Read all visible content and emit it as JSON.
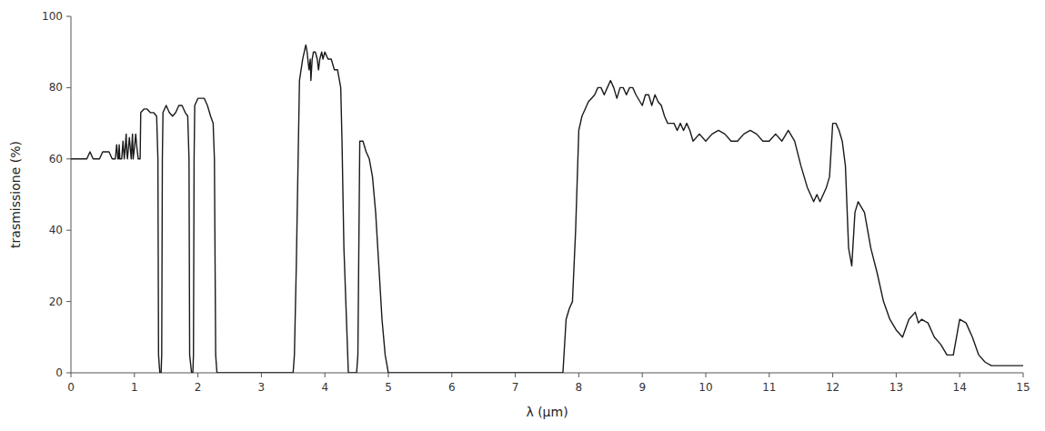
{
  "chart_data": {
    "type": "line",
    "xlabel": "λ (μm)",
    "ylabel": "trasmissione (%)",
    "color": "#1a1a1a",
    "xlim": [
      0,
      15
    ],
    "ylim": [
      0,
      100
    ],
    "xticks": [
      0,
      1,
      2,
      3,
      4,
      5,
      6,
      7,
      8,
      9,
      10,
      11,
      12,
      13,
      14,
      15
    ],
    "yticks": [
      0,
      20,
      40,
      60,
      80,
      100
    ],
    "x": [
      0.0,
      0.1,
      0.2,
      0.25,
      0.3,
      0.35,
      0.4,
      0.45,
      0.5,
      0.55,
      0.6,
      0.65,
      0.7,
      0.72,
      0.74,
      0.75,
      0.76,
      0.77,
      0.8,
      0.82,
      0.84,
      0.85,
      0.87,
      0.88,
      0.89,
      0.9,
      0.92,
      0.94,
      0.95,
      0.96,
      0.97,
      0.98,
      1.0,
      1.02,
      1.04,
      1.06,
      1.09,
      1.1,
      1.15,
      1.2,
      1.25,
      1.3,
      1.35,
      1.37,
      1.38,
      1.4,
      1.42,
      1.43,
      1.44,
      1.45,
      1.5,
      1.55,
      1.6,
      1.65,
      1.7,
      1.75,
      1.8,
      1.84,
      1.86,
      1.87,
      1.9,
      1.92,
      1.93,
      1.94,
      1.95,
      2.0,
      2.05,
      2.1,
      2.15,
      2.2,
      2.24,
      2.26,
      2.28,
      2.3,
      2.35,
      2.4,
      2.45,
      2.5,
      2.55,
      2.6,
      2.7,
      2.75,
      2.8,
      2.85,
      2.9,
      2.95,
      3.0,
      3.05,
      3.1,
      3.15,
      3.2,
      3.3,
      3.4,
      3.5,
      3.52,
      3.55,
      3.6,
      3.65,
      3.7,
      3.72,
      3.75,
      3.77,
      3.78,
      3.8,
      3.82,
      3.85,
      3.88,
      3.9,
      3.92,
      3.95,
      3.97,
      4.0,
      4.05,
      4.1,
      4.15,
      4.2,
      4.25,
      4.27,
      4.3,
      4.35,
      4.37,
      4.4,
      4.5,
      4.52,
      4.55,
      4.6,
      4.65,
      4.7,
      4.75,
      4.8,
      4.85,
      4.9,
      4.95,
      5.0,
      5.1,
      5.2,
      5.3,
      5.4,
      5.5,
      5.6,
      5.7,
      5.8,
      5.9,
      6.0,
      6.1,
      6.2,
      6.3,
      6.4,
      6.5,
      6.6,
      6.7,
      6.8,
      6.9,
      7.0,
      7.1,
      7.2,
      7.3,
      7.4,
      7.5,
      7.6,
      7.7,
      7.75,
      7.8,
      7.85,
      7.9,
      7.95,
      8.0,
      8.05,
      8.1,
      8.15,
      8.2,
      8.25,
      8.3,
      8.35,
      8.4,
      8.45,
      8.5,
      8.55,
      8.6,
      8.65,
      8.7,
      8.75,
      8.8,
      8.85,
      8.9,
      9.0,
      9.05,
      9.1,
      9.15,
      9.2,
      9.25,
      9.3,
      9.35,
      9.4,
      9.45,
      9.5,
      9.55,
      9.6,
      9.65,
      9.7,
      9.75,
      9.8,
      9.9,
      10.0,
      10.1,
      10.2,
      10.3,
      10.4,
      10.5,
      10.6,
      10.7,
      10.8,
      10.9,
      11.0,
      11.1,
      11.2,
      11.3,
      11.4,
      11.5,
      11.6,
      11.7,
      11.75,
      11.8,
      11.9,
      11.95,
      12.0,
      12.05,
      12.1,
      12.15,
      12.2,
      12.25,
      12.3,
      12.35,
      12.4,
      12.5,
      12.55,
      12.6,
      12.7,
      12.8,
      12.9,
      13.0,
      13.1,
      13.2,
      13.3,
      13.35,
      13.4,
      13.5,
      13.6,
      13.7,
      13.8,
      13.9,
      14.0,
      14.1,
      14.2,
      14.3,
      14.4,
      14.5,
      15.0
    ],
    "values": [
      60,
      60,
      60,
      60,
      62,
      60,
      60,
      60,
      62,
      62,
      62,
      60,
      60,
      64,
      60,
      60,
      64,
      60,
      60,
      65,
      60,
      62,
      67,
      62,
      60,
      62,
      66,
      62,
      60,
      64,
      67,
      60,
      63,
      67,
      63,
      60,
      60,
      73,
      74,
      74,
      73,
      73,
      72,
      60,
      5,
      0,
      0,
      5,
      60,
      73,
      75,
      73,
      72,
      73,
      75,
      75,
      73,
      72,
      60,
      5,
      0,
      0,
      5,
      60,
      75,
      77,
      77,
      77,
      75,
      72,
      70,
      60,
      5,
      0,
      0,
      0,
      0,
      0,
      0,
      0,
      0,
      0,
      0,
      0,
      0,
      0,
      0,
      0,
      0,
      0,
      0,
      0,
      0,
      0,
      5,
      30,
      82,
      88,
      92,
      90,
      85,
      88,
      82,
      88,
      90,
      90,
      88,
      85,
      88,
      90,
      88,
      90,
      88,
      88,
      85,
      85,
      80,
      65,
      35,
      10,
      0,
      0,
      0,
      5,
      65,
      65,
      62,
      60,
      55,
      45,
      30,
      15,
      5,
      0,
      0,
      0,
      0,
      0,
      0,
      0,
      0,
      0,
      0,
      0,
      0,
      0,
      0,
      0,
      0,
      0,
      0,
      0,
      0,
      0,
      0,
      0,
      0,
      0,
      0,
      0,
      0,
      0,
      15,
      18,
      20,
      40,
      68,
      72,
      74,
      76,
      77,
      78,
      80,
      80,
      78,
      80,
      82,
      80,
      77,
      80,
      80,
      78,
      80,
      80,
      78,
      75,
      78,
      78,
      75,
      78,
      76,
      75,
      72,
      70,
      70,
      70,
      68,
      70,
      68,
      70,
      68,
      65,
      67,
      65,
      67,
      68,
      67,
      65,
      65,
      67,
      68,
      67,
      65,
      65,
      67,
      65,
      68,
      65,
      58,
      52,
      48,
      50,
      48,
      52,
      55,
      70,
      70,
      68,
      65,
      58,
      35,
      30,
      45,
      48,
      45,
      40,
      35,
      28,
      20,
      15,
      12,
      10,
      15,
      17,
      14,
      15,
      14,
      10,
      8,
      5,
      5,
      15,
      14,
      10,
      5,
      3,
      2,
      2
    ]
  }
}
